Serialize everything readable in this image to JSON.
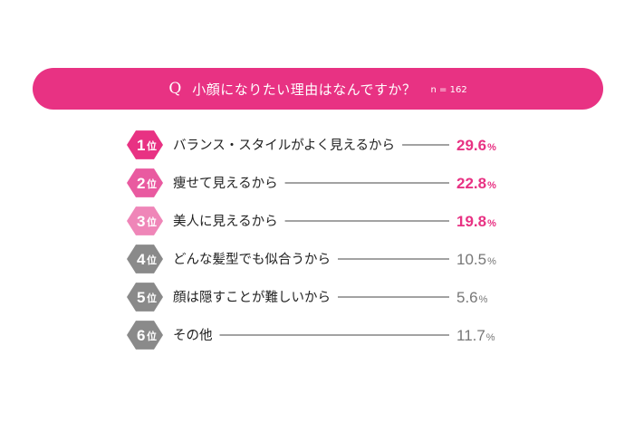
{
  "header": {
    "q_mark": "Q",
    "question": "小顔になりたい理由はなんですか？",
    "n_label": "n = 162"
  },
  "colors": {
    "banner": "#e83283",
    "rank_colors": [
      "#e83283",
      "#e95aa0",
      "#ef86b8",
      "#8a8a8a",
      "#8a8a8a",
      "#8a8a8a"
    ],
    "value_colors": [
      "#e83283",
      "#e83283",
      "#e83283",
      "#777777",
      "#777777",
      "#777777"
    ],
    "leader_line": "#444444"
  },
  "chart_data": {
    "type": "table",
    "rank_suffix": "位",
    "unit": "%",
    "rows": [
      {
        "rank": "1",
        "label": "バランス・スタイルがよく見えるから",
        "value": 29.6
      },
      {
        "rank": "2",
        "label": "痩せて見えるから",
        "value": 22.8
      },
      {
        "rank": "3",
        "label": "美人に見えるから",
        "value": 19.8
      },
      {
        "rank": "4",
        "label": "どんな髪型でも似合うから",
        "value": 10.5
      },
      {
        "rank": "5",
        "label": "顔は隠すことが難しいから",
        "value": 5.6
      },
      {
        "rank": "6",
        "label": "その他",
        "value": 11.7
      }
    ]
  }
}
